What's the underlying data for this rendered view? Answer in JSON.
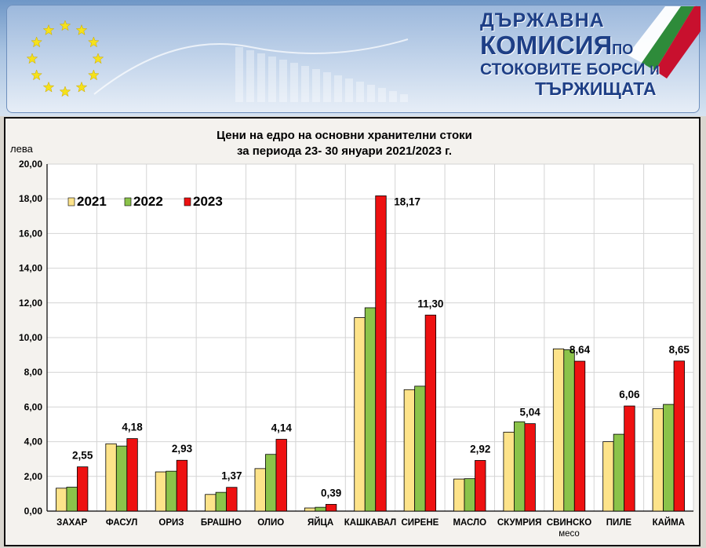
{
  "banner": {
    "line1": "ДЪРЖАВНА",
    "line2": "КОМИСИЯ",
    "line2_small": "ПО",
    "line3": "СТОКОВИТЕ БОРСИ",
    "line3_small": "И",
    "line4": "ТЪРЖИЩАТА",
    "colors": {
      "stars": "#f5e11a",
      "flag_white": "#ffffff",
      "flag_green": "#2e8b3a",
      "flag_red": "#c8102e"
    }
  },
  "chart_data": {
    "type": "bar",
    "title": "Цени на едро на основни хранителни стоки",
    "subtitle": "за периода 23- 30 януари 2021/2023 г.",
    "ylabel": "лева",
    "ylim": [
      0,
      20
    ],
    "yticks": [
      "0,00",
      "2,00",
      "4,00",
      "6,00",
      "8,00",
      "10,00",
      "12,00",
      "14,00",
      "16,00",
      "18,00",
      "20,00"
    ],
    "grid": true,
    "legend_position": "top-left",
    "categories": [
      "ЗАХАР",
      "ФАСУЛ",
      "ОРИЗ",
      "БРАШНО",
      "ОЛИО",
      "ЯЙЦА",
      "КАШКАВАЛ",
      "СИРЕНЕ",
      "МАСЛО",
      "СКУМРИЯ",
      "СВИНСКО месо",
      "ПИЛЕ",
      "КАЙМА"
    ],
    "category_lines": [
      [
        "ЗАХАР"
      ],
      [
        "ФАСУЛ"
      ],
      [
        "ОРИЗ"
      ],
      [
        "БРАШНО"
      ],
      [
        "ОЛИО"
      ],
      [
        "ЯЙЦА"
      ],
      [
        "КАШКАВАЛ"
      ],
      [
        "СИРЕНЕ"
      ],
      [
        "МАСЛО"
      ],
      [
        "СКУМРИЯ"
      ],
      [
        "СВИНСКО",
        "месо"
      ],
      [
        "ПИЛЕ"
      ],
      [
        "КАЙМА"
      ]
    ],
    "series": [
      {
        "name": "2021",
        "color": "#fde38a",
        "values": [
          1.32,
          3.88,
          2.26,
          0.96,
          2.45,
          0.18,
          11.15,
          7.0,
          1.85,
          4.55,
          9.35,
          4.0,
          5.9
        ]
      },
      {
        "name": "2022",
        "color": "#8bc34a",
        "values": [
          1.38,
          3.75,
          2.3,
          1.08,
          3.27,
          0.22,
          11.72,
          7.2,
          1.87,
          5.15,
          9.3,
          4.43,
          6.15
        ]
      },
      {
        "name": "2023",
        "color": "#ee1111",
        "values": [
          2.55,
          4.18,
          2.93,
          1.37,
          4.14,
          0.39,
          18.17,
          11.3,
          2.92,
          5.04,
          8.64,
          6.06,
          8.65
        ]
      }
    ],
    "data_labels": [
      "2,55",
      "4,18",
      "2,93",
      "1,37",
      "4,14",
      "0,39",
      "18,17",
      "11,30",
      "2,92",
      "5,04",
      "8,64",
      "6,06",
      "8,65"
    ]
  }
}
